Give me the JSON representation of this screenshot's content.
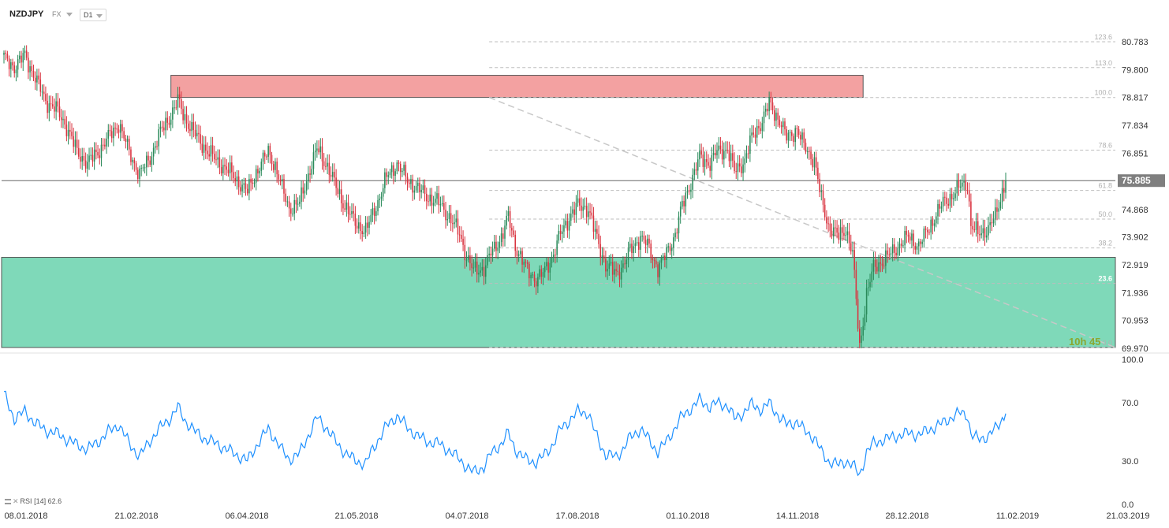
{
  "toolbar": {
    "symbol": "NZDJPY",
    "instrument_type": "FX",
    "timeframe": "D1"
  },
  "indicator_label": {
    "name": "RSI",
    "period": "[14]",
    "value": "62.6"
  },
  "countdown": "10h 45",
  "colors": {
    "up_candle": "#2a8a5a",
    "down_candle": "#d9333f",
    "resistance_zone": "#f08a8a",
    "support_zone": "#5fd0a8",
    "rsi_line": "#1e90ff",
    "price_tag": "#7f7f7f"
  },
  "chart_data": [
    {
      "type": "candlestick",
      "name": "NZDJPY",
      "x_ticks": [
        "08.01.2018",
        "21.02.2018",
        "06.04.2018",
        "21.05.2018",
        "04.07.2018",
        "17.08.2018",
        "01.10.2018",
        "14.11.2018",
        "28.12.2018",
        "11.02.2019",
        "21.03.2019"
      ],
      "y_ticks": [
        "80.783",
        "79.800",
        "78.817",
        "77.834",
        "76.851",
        "75.885",
        "74.868",
        "73.902",
        "72.919",
        "71.936",
        "70.953",
        "69.970"
      ],
      "ylim": [
        69.97,
        80.783
      ],
      "last_price": "75.885",
      "close_path": [
        [
          0,
          80.2
        ],
        [
          6,
          79.9
        ],
        [
          12,
          80.3
        ],
        [
          18,
          79.5
        ],
        [
          24,
          78.7
        ],
        [
          30,
          78.4
        ],
        [
          36,
          77.8
        ],
        [
          42,
          76.9
        ],
        [
          48,
          76.5
        ],
        [
          54,
          76.9
        ],
        [
          60,
          77.4
        ],
        [
          66,
          77.9
        ],
        [
          72,
          76.9
        ],
        [
          78,
          76.1
        ],
        [
          84,
          76.7
        ],
        [
          90,
          77.6
        ],
        [
          96,
          78.2
        ],
        [
          100,
          78.7
        ],
        [
          104,
          78.1
        ],
        [
          110,
          77.5
        ],
        [
          116,
          77.0
        ],
        [
          122,
          76.6
        ],
        [
          128,
          76.3
        ],
        [
          134,
          75.9
        ],
        [
          140,
          75.5
        ],
        [
          146,
          76.3
        ],
        [
          152,
          76.9
        ],
        [
          156,
          76.4
        ],
        [
          160,
          75.6
        ],
        [
          164,
          74.9
        ],
        [
          170,
          75.1
        ],
        [
          176,
          76.3
        ],
        [
          180,
          77.0
        ],
        [
          186,
          76.4
        ],
        [
          192,
          75.5
        ],
        [
          196,
          75.0
        ],
        [
          202,
          74.4
        ],
        [
          208,
          74.1
        ],
        [
          212,
          74.7
        ],
        [
          216,
          75.3
        ],
        [
          220,
          76.0
        ],
        [
          226,
          76.5
        ],
        [
          232,
          75.9
        ],
        [
          238,
          75.6
        ],
        [
          244,
          75.3
        ],
        [
          250,
          75.1
        ],
        [
          256,
          74.6
        ],
        [
          262,
          74.0
        ],
        [
          266,
          73.2
        ],
        [
          270,
          72.7
        ],
        [
          276,
          72.8
        ],
        [
          280,
          73.3
        ],
        [
          286,
          73.9
        ],
        [
          290,
          74.6
        ],
        [
          294,
          73.6
        ],
        [
          300,
          72.8
        ],
        [
          306,
          72.4
        ],
        [
          310,
          72.6
        ],
        [
          316,
          73.3
        ],
        [
          320,
          74.0
        ],
        [
          326,
          74.7
        ],
        [
          330,
          75.0
        ],
        [
          336,
          74.9
        ],
        [
          340,
          74.0
        ],
        [
          346,
          72.9
        ],
        [
          352,
          72.6
        ],
        [
          356,
          72.9
        ],
        [
          360,
          73.4
        ],
        [
          366,
          73.9
        ],
        [
          370,
          73.6
        ],
        [
          376,
          72.8
        ],
        [
          380,
          73.2
        ],
        [
          386,
          74.0
        ],
        [
          390,
          75.0
        ],
        [
          396,
          76.0
        ],
        [
          400,
          76.7
        ],
        [
          406,
          76.5
        ],
        [
          410,
          76.9
        ],
        [
          416,
          77.0
        ],
        [
          420,
          76.2
        ],
        [
          426,
          76.6
        ],
        [
          430,
          77.4
        ],
        [
          436,
          78.0
        ],
        [
          440,
          78.6
        ],
        [
          446,
          78.0
        ],
        [
          450,
          77.4
        ],
        [
          456,
          77.7
        ],
        [
          460,
          77.1
        ],
        [
          466,
          76.6
        ],
        [
          470,
          75.2
        ],
        [
          474,
          74.3
        ],
        [
          480,
          73.9
        ],
        [
          484,
          74.2
        ],
        [
          488,
          73.3
        ],
        [
          492,
          70.0
        ],
        [
          496,
          71.9
        ],
        [
          500,
          72.8
        ],
        [
          504,
          73.0
        ],
        [
          510,
          73.3
        ],
        [
          516,
          73.7
        ],
        [
          520,
          73.9
        ],
        [
          526,
          73.6
        ],
        [
          530,
          74.0
        ],
        [
          536,
          74.7
        ],
        [
          540,
          75.1
        ],
        [
          546,
          75.4
        ],
        [
          550,
          75.7
        ],
        [
          554,
          75.8
        ],
        [
          556,
          74.3
        ],
        [
          560,
          74.0
        ],
        [
          566,
          74.2
        ],
        [
          570,
          74.6
        ],
        [
          574,
          75.5
        ],
        [
          576,
          75.885
        ]
      ],
      "rsi": {
        "ylim": [
          0,
          100
        ],
        "y_ticks": [
          "100.0",
          "70.0",
          "30.0",
          "0.0"
        ],
        "close_path": [
          [
            0,
            76
          ],
          [
            6,
            59
          ],
          [
            12,
            64
          ],
          [
            18,
            56
          ],
          [
            24,
            51
          ],
          [
            30,
            49
          ],
          [
            36,
            45
          ],
          [
            42,
            41
          ],
          [
            48,
            38
          ],
          [
            54,
            43
          ],
          [
            60,
            50
          ],
          [
            66,
            55
          ],
          [
            72,
            42
          ],
          [
            78,
            33
          ],
          [
            84,
            44
          ],
          [
            90,
            53
          ],
          [
            96,
            60
          ],
          [
            100,
            67
          ],
          [
            104,
            58
          ],
          [
            110,
            50
          ],
          [
            116,
            45
          ],
          [
            122,
            42
          ],
          [
            128,
            38
          ],
          [
            134,
            34
          ],
          [
            140,
            30
          ],
          [
            146,
            42
          ],
          [
            152,
            52
          ],
          [
            156,
            45
          ],
          [
            160,
            37
          ],
          [
            164,
            31
          ],
          [
            170,
            35
          ],
          [
            176,
            50
          ],
          [
            180,
            60
          ],
          [
            186,
            52
          ],
          [
            192,
            41
          ],
          [
            196,
            36
          ],
          [
            202,
            30
          ],
          [
            208,
            28
          ],
          [
            212,
            38
          ],
          [
            216,
            46
          ],
          [
            220,
            54
          ],
          [
            226,
            61
          ],
          [
            232,
            53
          ],
          [
            238,
            47
          ],
          [
            244,
            43
          ],
          [
            250,
            42
          ],
          [
            256,
            37
          ],
          [
            262,
            31
          ],
          [
            266,
            26
          ],
          [
            270,
            22
          ],
          [
            276,
            26
          ],
          [
            280,
            35
          ],
          [
            286,
            42
          ],
          [
            290,
            49
          ],
          [
            294,
            38
          ],
          [
            300,
            31
          ],
          [
            306,
            29
          ],
          [
            310,
            33
          ],
          [
            316,
            42
          ],
          [
            320,
            52
          ],
          [
            326,
            59
          ],
          [
            330,
            64
          ],
          [
            336,
            63
          ],
          [
            340,
            49
          ],
          [
            346,
            34
          ],
          [
            352,
            33
          ],
          [
            356,
            38
          ],
          [
            360,
            46
          ],
          [
            366,
            52
          ],
          [
            370,
            46
          ],
          [
            376,
            36
          ],
          [
            380,
            42
          ],
          [
            386,
            53
          ],
          [
            390,
            61
          ],
          [
            396,
            67
          ],
          [
            400,
            72
          ],
          [
            406,
            67
          ],
          [
            410,
            70
          ],
          [
            416,
            68
          ],
          [
            420,
            59
          ],
          [
            426,
            64
          ],
          [
            430,
            69
          ],
          [
            436,
            65
          ],
          [
            440,
            70
          ],
          [
            446,
            60
          ],
          [
            450,
            55
          ],
          [
            456,
            57
          ],
          [
            460,
            51
          ],
          [
            466,
            46
          ],
          [
            470,
            36
          ],
          [
            474,
            30
          ],
          [
            480,
            27
          ],
          [
            484,
            30
          ],
          [
            488,
            27
          ],
          [
            492,
            20
          ],
          [
            496,
            36
          ],
          [
            500,
            42
          ],
          [
            504,
            44
          ],
          [
            510,
            46
          ],
          [
            516,
            48
          ],
          [
            520,
            49
          ],
          [
            526,
            48
          ],
          [
            530,
            50
          ],
          [
            536,
            54
          ],
          [
            540,
            56
          ],
          [
            546,
            61
          ],
          [
            550,
            63
          ],
          [
            554,
            62
          ],
          [
            556,
            48
          ],
          [
            560,
            45
          ],
          [
            566,
            47
          ],
          [
            570,
            52
          ],
          [
            576,
            62.6
          ]
        ]
      },
      "annotations": [
        {
          "type": "zone",
          "name": "resistance",
          "y_range": [
            78.82,
            79.6
          ],
          "x_range": [
            96,
            494
          ]
        },
        {
          "type": "zone",
          "name": "support",
          "y_range": [
            70.0,
            73.18
          ],
          "x_range": [
            0,
            576
          ]
        },
        {
          "type": "horizontal_line",
          "name": "last price",
          "y": 75.885
        }
      ],
      "fibonacci": {
        "levels": [
          "123.6",
          "113.0",
          "100.0",
          "78.6",
          "61.8",
          "50.0",
          "38.2",
          "23.6",
          "0.0"
        ],
        "y_values": [
          80.783,
          79.872,
          78.817,
          76.96,
          75.54,
          74.53,
          73.51,
          72.26,
          70.0
        ],
        "x_range": [
          279,
          576
        ],
        "trend_from": [
          279,
          78.817
        ],
        "trend_to": [
          576,
          70.0
        ]
      }
    }
  ]
}
